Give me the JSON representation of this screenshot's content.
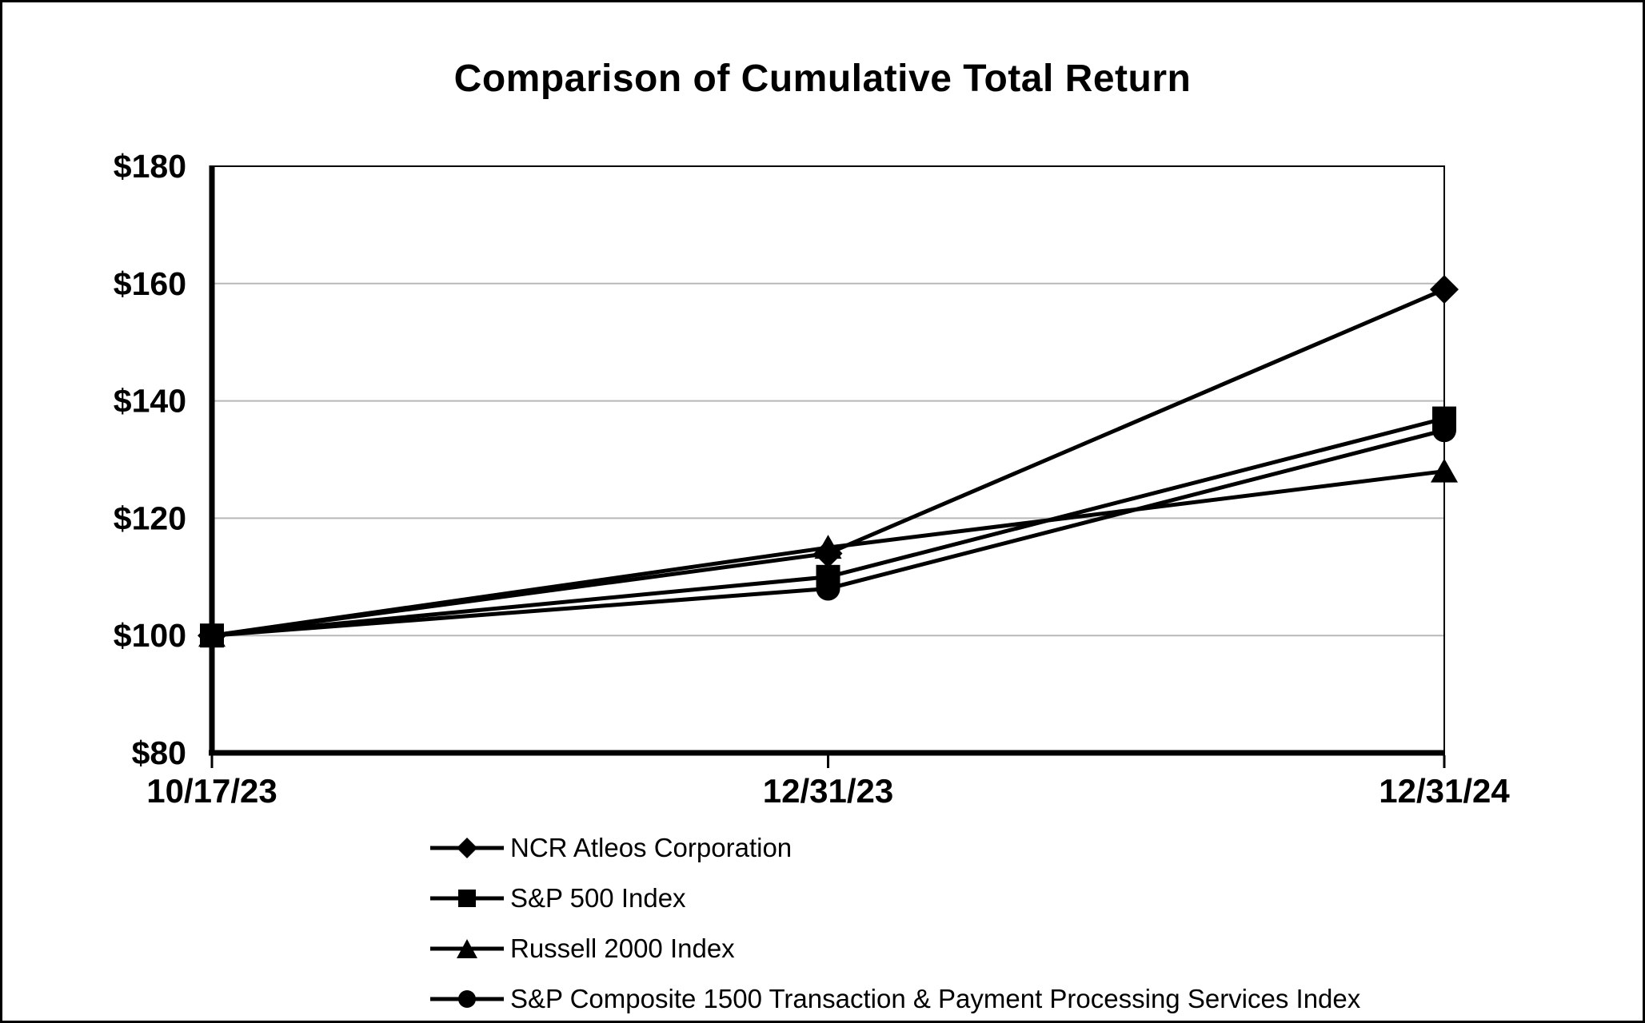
{
  "chart_data": {
    "type": "line",
    "title": "Comparison of Cumulative Total Return",
    "x_tick_labels": [
      "10/17/23",
      "12/31/23",
      "12/31/24"
    ],
    "y_tick_labels": [
      "$80",
      "$100",
      "$120",
      "$140",
      "$160",
      "$180"
    ],
    "y_tick_values": [
      80,
      100,
      120,
      140,
      160,
      180
    ],
    "ylim": [
      80,
      180
    ],
    "grid": true,
    "legend_position": "bottom-left",
    "line_color": "#000000",
    "grid_color": "#b8b8b8",
    "background_color": "#ffffff",
    "series": [
      {
        "name": "NCR Atleos Corporation",
        "marker": "diamond",
        "values": [
          100,
          114,
          159
        ]
      },
      {
        "name": "S&P 500 Index",
        "marker": "square",
        "values": [
          100,
          110,
          137
        ]
      },
      {
        "name": "Russell 2000 Index",
        "marker": "triangle",
        "values": [
          100,
          115,
          128
        ]
      },
      {
        "name": "S&P Composite 1500 Transaction & Payment Processing Services Index",
        "marker": "circle",
        "values": [
          100,
          108,
          135
        ]
      }
    ]
  }
}
